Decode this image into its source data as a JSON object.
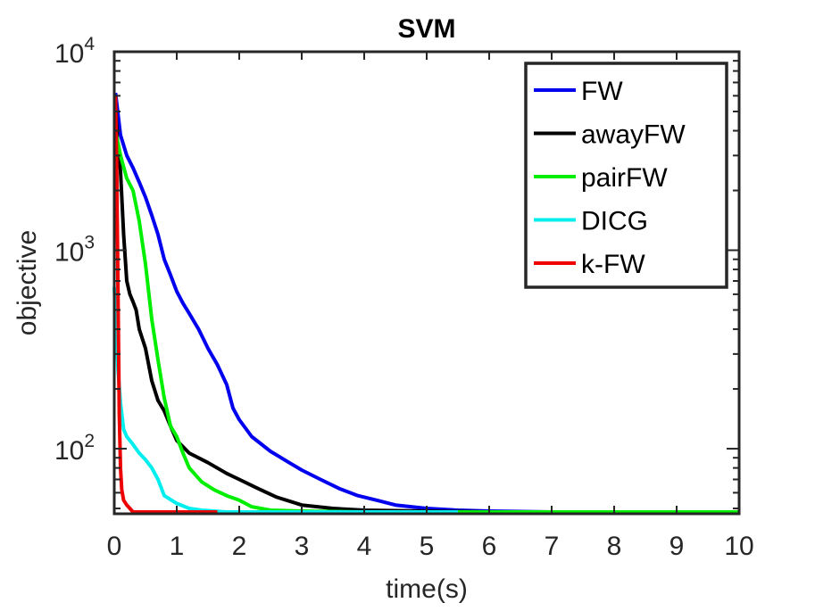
{
  "chart_data": {
    "type": "line",
    "title": "SVM",
    "xlabel": "time(s)",
    "ylabel": "objective",
    "xscale": "linear",
    "yscale": "log",
    "xlim": [
      0,
      10
    ],
    "ylim": [
      47,
      10000
    ],
    "xticks": [
      0,
      1,
      2,
      3,
      4,
      5,
      6,
      7,
      8,
      9,
      10
    ],
    "xtick_labels": [
      "0",
      "1",
      "2",
      "3",
      "4",
      "5",
      "6",
      "7",
      "8",
      "9",
      "10"
    ],
    "yticks": [
      {
        "value": 100,
        "base": "10",
        "exp": "2"
      },
      {
        "value": 1000,
        "base": "10",
        "exp": "3"
      },
      {
        "value": 10000,
        "base": "10",
        "exp": "4"
      }
    ],
    "grid": false,
    "legend_position": "top-right",
    "series": [
      {
        "name": "FW",
        "color": "#0000ee",
        "x": [
          0.02,
          0.1,
          0.2,
          0.3,
          0.4,
          0.5,
          0.6,
          0.7,
          0.8,
          0.9,
          1.0,
          1.1,
          1.2,
          1.35,
          1.5,
          1.65,
          1.8,
          1.9,
          2.0,
          2.2,
          2.5,
          2.8,
          3.0,
          3.3,
          3.6,
          3.9,
          4.2,
          4.5,
          5.0,
          5.5,
          6.0,
          7.0,
          8.0,
          9.0,
          10.0
        ],
        "y": [
          6200,
          3800,
          3000,
          2600,
          2200,
          1850,
          1500,
          1200,
          900,
          750,
          620,
          540,
          480,
          400,
          320,
          265,
          210,
          160,
          140,
          115,
          97,
          85,
          78,
          70,
          63,
          58,
          55,
          52,
          50,
          49,
          48.5,
          48,
          48,
          48,
          48
        ]
      },
      {
        "name": "awayFW",
        "color": "#000000",
        "x": [
          0.02,
          0.05,
          0.1,
          0.15,
          0.2,
          0.25,
          0.3,
          0.35,
          0.4,
          0.5,
          0.6,
          0.7,
          0.8,
          0.9,
          1.0,
          1.2,
          1.5,
          1.8,
          2.0,
          2.3,
          2.6,
          3.0,
          3.5,
          4.0,
          5.0,
          6.0,
          8.0,
          10.0
        ],
        "y": [
          5500,
          3500,
          2500,
          1200,
          700,
          600,
          550,
          500,
          400,
          320,
          220,
          175,
          155,
          130,
          110,
          95,
          85,
          75,
          70,
          63,
          57,
          52,
          50,
          49,
          48.5,
          48,
          48,
          48
        ]
      },
      {
        "name": "pairFW",
        "color": "#00ee00",
        "x": [
          0.02,
          0.1,
          0.2,
          0.3,
          0.4,
          0.5,
          0.6,
          0.7,
          0.8,
          0.9,
          1.0,
          1.1,
          1.2,
          1.4,
          1.6,
          1.8,
          2.0,
          2.2,
          2.5,
          3.0,
          4.0,
          5.0,
          6.0,
          8.0,
          10.0
        ],
        "y": [
          4000,
          3000,
          2300,
          2000,
          1400,
          850,
          450,
          280,
          180,
          130,
          115,
          95,
          80,
          68,
          62,
          58,
          55,
          51,
          49,
          48.5,
          48,
          48,
          48,
          48,
          48
        ]
      },
      {
        "name": "DICG",
        "color": "#00eeee",
        "x": [
          0.0,
          0.03,
          0.06,
          0.1,
          0.15,
          0.2,
          0.3,
          0.4,
          0.5,
          0.6,
          0.7,
          0.8,
          1.0,
          1.2,
          1.4,
          1.6,
          1.8,
          2.0,
          3.0,
          4.0,
          5.5
        ],
        "y": [
          650,
          400,
          250,
          170,
          125,
          115,
          105,
          95,
          88,
          80,
          70,
          58,
          53,
          50,
          49,
          48.5,
          48,
          48,
          48,
          48,
          48
        ]
      },
      {
        "name": "k-FW",
        "color": "#ee0000",
        "x": [
          0.02,
          0.04,
          0.06,
          0.08,
          0.1,
          0.12,
          0.15,
          0.2,
          0.25,
          0.3,
          0.5,
          1.0,
          1.65
        ],
        "y": [
          6000,
          2500,
          600,
          150,
          80,
          62,
          55,
          52,
          50,
          48,
          48,
          48,
          48
        ]
      }
    ]
  }
}
